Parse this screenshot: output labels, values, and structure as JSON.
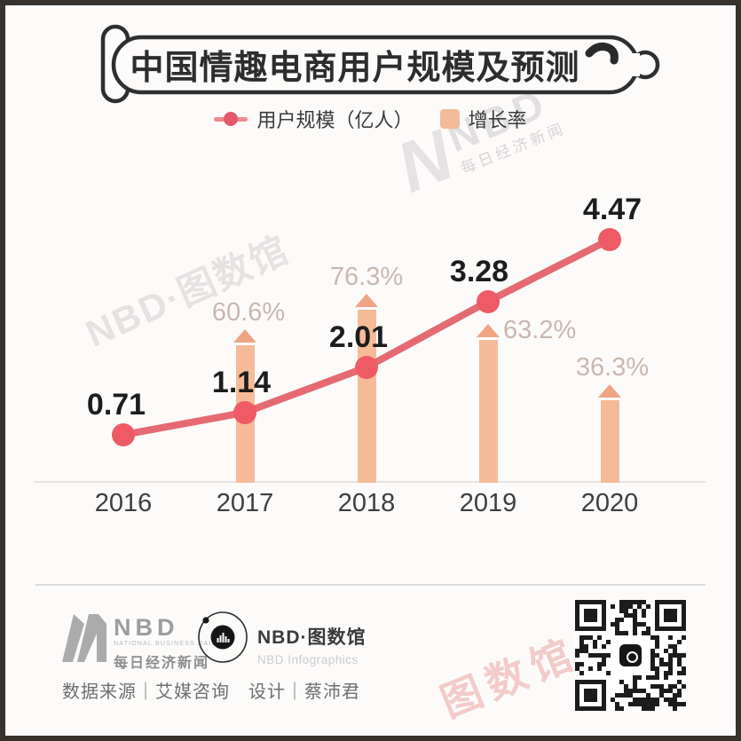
{
  "title": {
    "text": "中国情趣电商用户规模及预测"
  },
  "legend": [
    {
      "label": "用户规模（亿人）",
      "type": "line-dot"
    },
    {
      "label": "增长率",
      "type": "bar"
    }
  ],
  "chart_data": {
    "type": "line+bar",
    "title": "中国情趣电商用户规模及预测",
    "categories": [
      "2016",
      "2017",
      "2018",
      "2019",
      "2020"
    ],
    "series": [
      {
        "name": "用户规模（亿人）",
        "type": "line",
        "values": [
          0.71,
          1.14,
          2.01,
          3.28,
          4.47
        ],
        "labels": [
          "0.71",
          "1.14",
          "2.01",
          "3.28",
          "4.47"
        ]
      },
      {
        "name": "增长率",
        "type": "bar",
        "unit": "%",
        "values": [
          null,
          60.6,
          76.3,
          63.2,
          36.3
        ],
        "labels": [
          null,
          "60.6%",
          "76.3%",
          "63.2%",
          "36.3%"
        ]
      }
    ],
    "legend_position": "top",
    "grid": false,
    "x_axis_line": true
  },
  "watermarks": {
    "center": "NBD·图数馆",
    "top_right_n": "N",
    "top_right_main": "NBD",
    "top_right_sub": "每日经济新闻",
    "bottom_right": "图数馆"
  },
  "footer": {
    "brand_name": "NBD",
    "brand_sub": "NATIONAL BUSINESS DAILY",
    "brand_cn": "每日经济新闻",
    "studio_name": "NBD·图数馆",
    "studio_sub": "NBD Infographics",
    "source_line": "数据来源｜艾媒咨询　设计｜蔡沛君"
  },
  "colors": {
    "line": "#e56a72",
    "dot": "#ee5a66",
    "bar": "#f5bb98",
    "bar_arrow": "#efa584",
    "pct_label": "#c9b8b0",
    "value_label": "#1d1d1d",
    "axis_label": "#3e3e3e",
    "frame": "#37322d",
    "watermark_pink": "#eba4a0"
  }
}
